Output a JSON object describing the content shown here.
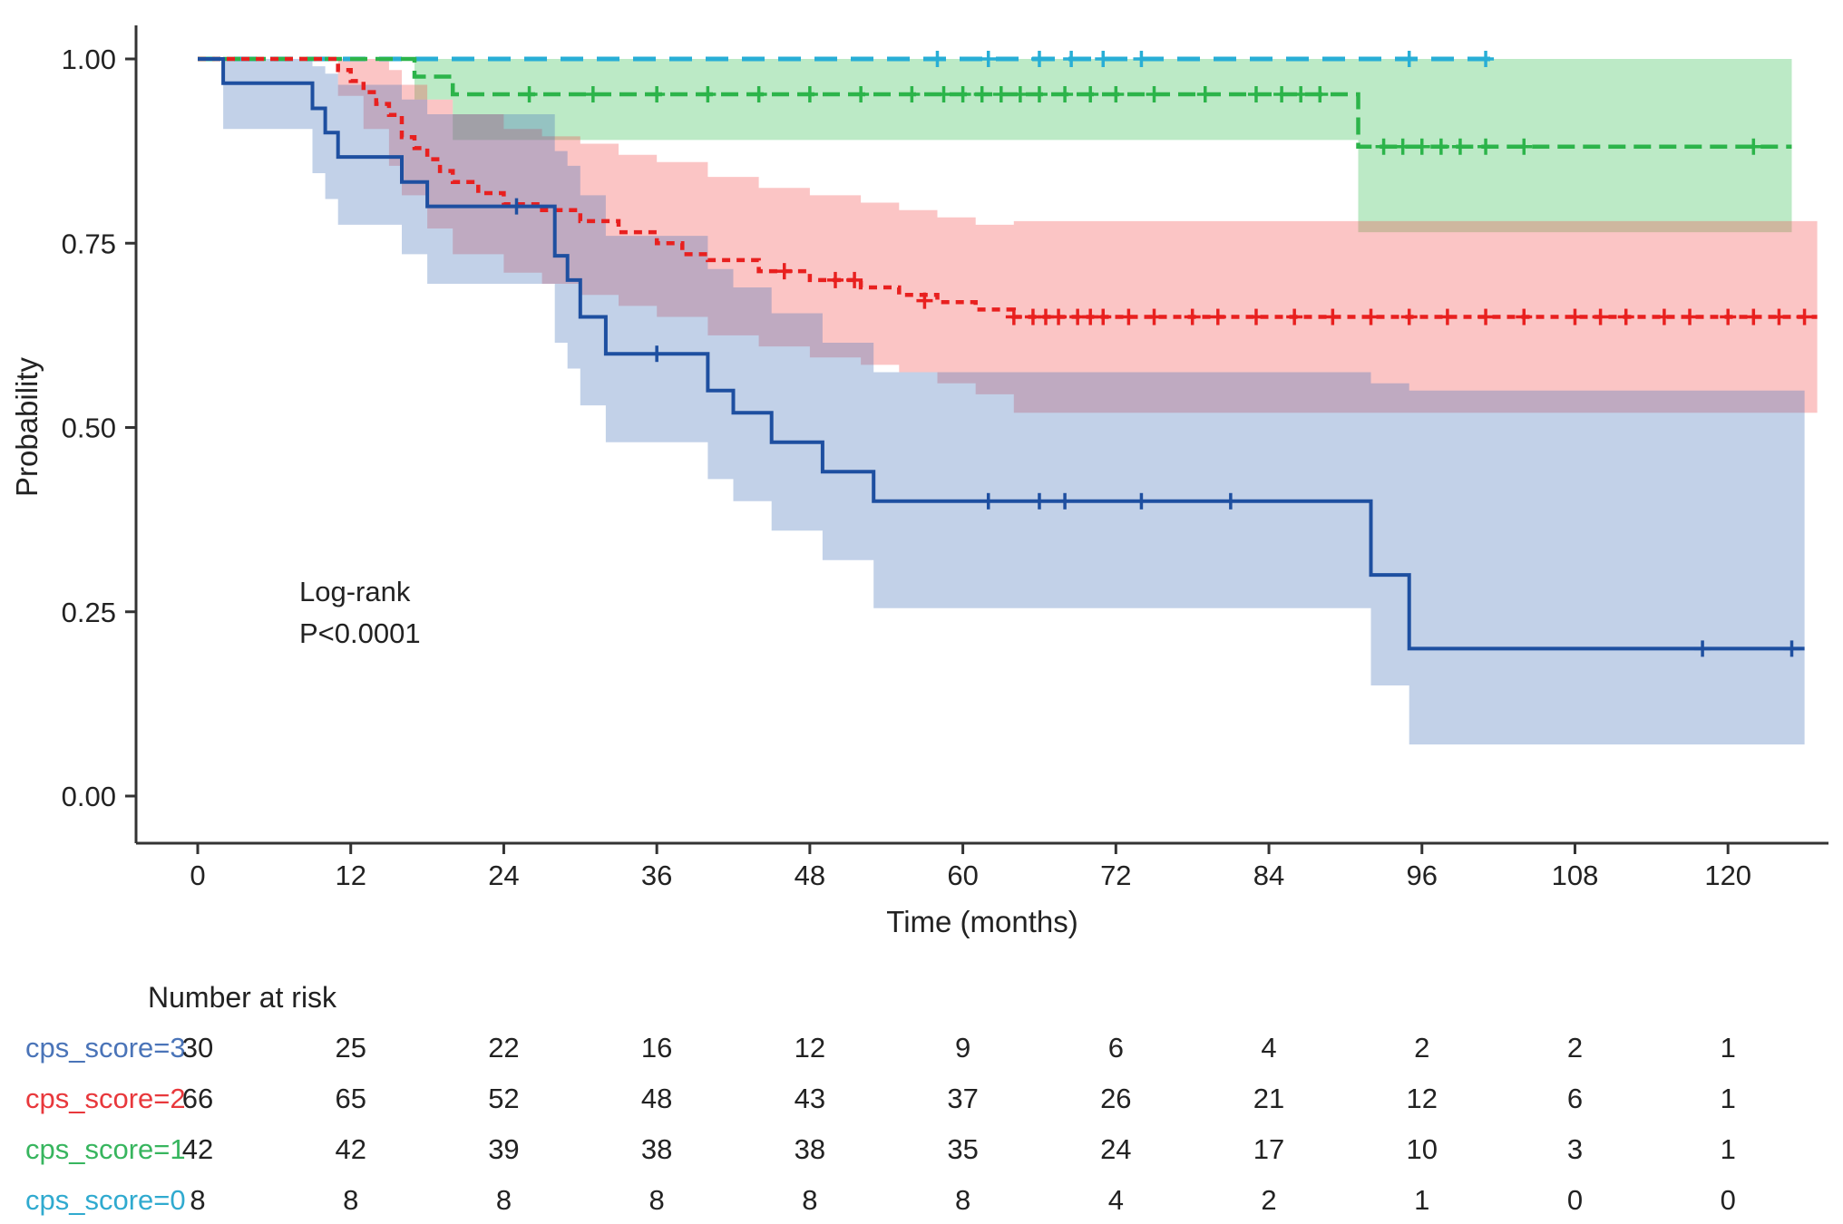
{
  "chart_data": {
    "type": "line",
    "subtype": "kaplan-meier-survival",
    "title": "",
    "xlabel": "Time (months)",
    "ylabel": "Probability",
    "xticks": [
      0,
      12,
      24,
      36,
      48,
      60,
      72,
      84,
      96,
      108,
      120
    ],
    "ytick_labels": [
      "0.00",
      "0.25",
      "0.50",
      "0.75",
      "1.00"
    ],
    "ytick_values": [
      0,
      0.25,
      0.5,
      0.75,
      1
    ],
    "xlim": [
      -8,
      128
    ],
    "ylim": [
      -0.06,
      1.04
    ],
    "grid": false,
    "legend_position": "none",
    "annotation": {
      "line1": "Log-rank",
      "line2": "P<0.0001"
    },
    "series": [
      {
        "name": "cps_score=0",
        "color": "#28aed6",
        "band_color": "rgba(60,190,225,0.0)",
        "dash": "25,15",
        "width": 5,
        "steps": [
          [
            0,
            1.0
          ],
          [
            102,
            1.0
          ]
        ],
        "censors": [
          [
            58,
            1.0
          ],
          [
            62,
            1.0
          ],
          [
            66,
            1.0
          ],
          [
            68.5,
            1.0
          ],
          [
            71,
            1.0
          ],
          [
            74,
            1.0
          ],
          [
            95,
            1.0
          ],
          [
            101,
            1.0
          ]
        ],
        "band": []
      },
      {
        "name": "cps_score=1",
        "color": "#2cb44a",
        "band_color": "rgba(80,200,105,0.38)",
        "dash": "19,9",
        "width": 4.5,
        "steps": [
          [
            0,
            1.0
          ],
          [
            17,
            0.976
          ],
          [
            20,
            0.952
          ],
          [
            91,
            0.881
          ],
          [
            125,
            0.881
          ]
        ],
        "censors": [
          [
            26,
            0.952
          ],
          [
            31,
            0.952
          ],
          [
            36,
            0.952
          ],
          [
            40,
            0.952
          ],
          [
            44,
            0.952
          ],
          [
            48,
            0.952
          ],
          [
            52,
            0.952
          ],
          [
            56,
            0.952
          ],
          [
            58.5,
            0.952
          ],
          [
            60,
            0.952
          ],
          [
            61.5,
            0.952
          ],
          [
            63,
            0.952
          ],
          [
            64.5,
            0.952
          ],
          [
            66,
            0.952
          ],
          [
            68,
            0.952
          ],
          [
            70,
            0.952
          ],
          [
            72,
            0.952
          ],
          [
            75,
            0.952
          ],
          [
            79,
            0.952
          ],
          [
            83,
            0.952
          ],
          [
            85,
            0.952
          ],
          [
            86.5,
            0.952
          ],
          [
            88,
            0.952
          ],
          [
            93,
            0.881
          ],
          [
            94.5,
            0.881
          ],
          [
            96,
            0.881
          ],
          [
            97.5,
            0.881
          ],
          [
            99,
            0.881
          ],
          [
            101,
            0.881
          ],
          [
            104,
            0.881
          ],
          [
            122,
            0.881
          ]
        ],
        "band": [
          [
            0,
            1.0,
            1.0
          ],
          [
            17,
            0.945,
            1.0
          ],
          [
            20,
            0.89,
            1.0
          ],
          [
            91,
            0.765,
            1.0
          ],
          [
            125,
            0.765,
            1.0
          ]
        ]
      },
      {
        "name": "cps_score=2",
        "color": "#e8201f",
        "band_color": "rgba(242,80,80,0.33)",
        "dash": "9,7",
        "width": 4.5,
        "steps": [
          [
            0,
            1.0
          ],
          [
            11,
            0.985
          ],
          [
            12,
            0.97
          ],
          [
            13,
            0.955
          ],
          [
            14,
            0.939
          ],
          [
            15,
            0.924
          ],
          [
            16,
            0.894
          ],
          [
            17,
            0.879
          ],
          [
            18,
            0.864
          ],
          [
            19,
            0.848
          ],
          [
            20,
            0.833
          ],
          [
            22,
            0.818
          ],
          [
            24,
            0.803
          ],
          [
            27,
            0.795
          ],
          [
            30,
            0.78
          ],
          [
            33,
            0.765
          ],
          [
            36,
            0.75
          ],
          [
            38,
            0.735
          ],
          [
            40,
            0.727
          ],
          [
            44,
            0.712
          ],
          [
            48,
            0.7
          ],
          [
            52,
            0.69
          ],
          [
            55,
            0.68
          ],
          [
            58,
            0.67
          ],
          [
            61,
            0.66
          ],
          [
            64,
            0.65
          ],
          [
            127,
            0.65
          ]
        ],
        "censors": [
          [
            46,
            0.712
          ],
          [
            50,
            0.7
          ],
          [
            51.5,
            0.7
          ],
          [
            57,
            0.672
          ],
          [
            64,
            0.65
          ],
          [
            65.5,
            0.65
          ],
          [
            66.5,
            0.65
          ],
          [
            67.5,
            0.65
          ],
          [
            69,
            0.65
          ],
          [
            70,
            0.65
          ],
          [
            71,
            0.65
          ],
          [
            73,
            0.65
          ],
          [
            75,
            0.65
          ],
          [
            78,
            0.65
          ],
          [
            80,
            0.65
          ],
          [
            83,
            0.65
          ],
          [
            86,
            0.65
          ],
          [
            89,
            0.65
          ],
          [
            92,
            0.65
          ],
          [
            95,
            0.65
          ],
          [
            98,
            0.65
          ],
          [
            101,
            0.65
          ],
          [
            104,
            0.65
          ],
          [
            108,
            0.65
          ],
          [
            110,
            0.65
          ],
          [
            112,
            0.65
          ],
          [
            115,
            0.65
          ],
          [
            117,
            0.65
          ],
          [
            120,
            0.65
          ],
          [
            122,
            0.65
          ],
          [
            124,
            0.65
          ],
          [
            126,
            0.65
          ]
        ],
        "band": [
          [
            0,
            1.0,
            1.0
          ],
          [
            11,
            0.95,
            1.0
          ],
          [
            13,
            0.905,
            1.0
          ],
          [
            15,
            0.855,
            0.985
          ],
          [
            16,
            0.815,
            0.965
          ],
          [
            18,
            0.77,
            0.945
          ],
          [
            20,
            0.735,
            0.925
          ],
          [
            24,
            0.71,
            0.905
          ],
          [
            27,
            0.695,
            0.895
          ],
          [
            30,
            0.68,
            0.885
          ],
          [
            33,
            0.665,
            0.87
          ],
          [
            36,
            0.65,
            0.86
          ],
          [
            40,
            0.625,
            0.84
          ],
          [
            44,
            0.61,
            0.825
          ],
          [
            48,
            0.595,
            0.815
          ],
          [
            52,
            0.585,
            0.805
          ],
          [
            55,
            0.575,
            0.795
          ],
          [
            58,
            0.56,
            0.785
          ],
          [
            61,
            0.545,
            0.775
          ],
          [
            64,
            0.52,
            0.78
          ],
          [
            127,
            0.52,
            0.78
          ]
        ]
      },
      {
        "name": "cps_score=3",
        "color": "#1e4fa0",
        "band_color": "rgba(70,115,185,0.33)",
        "dash": "",
        "width": 4,
        "steps": [
          [
            0,
            1.0
          ],
          [
            2,
            0.967
          ],
          [
            9,
            0.933
          ],
          [
            10,
            0.9
          ],
          [
            11,
            0.867
          ],
          [
            16,
            0.833
          ],
          [
            18,
            0.8
          ],
          [
            28,
            0.733
          ],
          [
            29,
            0.7
          ],
          [
            30,
            0.65
          ],
          [
            32,
            0.6
          ],
          [
            40,
            0.55
          ],
          [
            42,
            0.52
          ],
          [
            45,
            0.48
          ],
          [
            49,
            0.44
          ],
          [
            53,
            0.4
          ],
          [
            92,
            0.3
          ],
          [
            95,
            0.2
          ],
          [
            126,
            0.2
          ]
        ],
        "censors": [
          [
            25,
            0.8
          ],
          [
            36,
            0.6
          ],
          [
            62,
            0.4
          ],
          [
            66,
            0.4
          ],
          [
            68,
            0.4
          ],
          [
            74,
            0.4
          ],
          [
            81,
            0.4
          ],
          [
            118,
            0.2
          ],
          [
            125,
            0.2
          ]
        ],
        "band": [
          [
            0,
            1.0,
            1.0
          ],
          [
            2,
            0.905,
            1.0
          ],
          [
            9,
            0.845,
            0.99
          ],
          [
            10,
            0.81,
            0.98
          ],
          [
            11,
            0.775,
            0.965
          ],
          [
            16,
            0.735,
            0.945
          ],
          [
            18,
            0.695,
            0.925
          ],
          [
            28,
            0.615,
            0.875
          ],
          [
            29,
            0.58,
            0.855
          ],
          [
            30,
            0.53,
            0.815
          ],
          [
            32,
            0.48,
            0.76
          ],
          [
            40,
            0.43,
            0.715
          ],
          [
            42,
            0.4,
            0.69
          ],
          [
            45,
            0.36,
            0.655
          ],
          [
            49,
            0.32,
            0.615
          ],
          [
            53,
            0.255,
            0.575
          ],
          [
            92,
            0.15,
            0.56
          ],
          [
            95,
            0.07,
            0.55
          ],
          [
            126,
            0.07,
            0.55
          ]
        ]
      }
    ],
    "risk_table": {
      "header": "Number at risk",
      "times": [
        0,
        12,
        24,
        36,
        48,
        60,
        72,
        84,
        96,
        108,
        120
      ],
      "rows": [
        {
          "label": "cps_score=3",
          "color": "#4a74b8",
          "counts": [
            30,
            25,
            22,
            16,
            12,
            9,
            6,
            4,
            2,
            2,
            1
          ]
        },
        {
          "label": "cps_score=2",
          "color": "#e8383c",
          "counts": [
            66,
            65,
            52,
            48,
            43,
            37,
            26,
            21,
            12,
            6,
            1
          ]
        },
        {
          "label": "cps_score=1",
          "color": "#37b55e",
          "counts": [
            42,
            42,
            39,
            38,
            38,
            35,
            24,
            17,
            10,
            3,
            1
          ]
        },
        {
          "label": "cps_score=0",
          "color": "#30aacf",
          "counts": [
            8,
            8,
            8,
            8,
            8,
            8,
            4,
            2,
            1,
            0,
            0
          ]
        }
      ]
    }
  }
}
